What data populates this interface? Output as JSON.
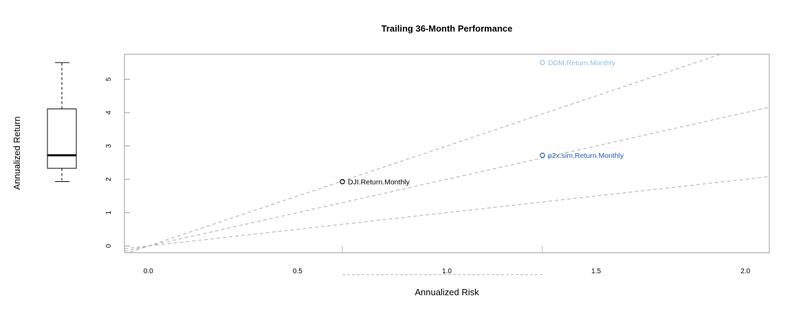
{
  "chart_data": {
    "type": "scatter",
    "title": "Trailing 36-Month Performance",
    "xlabel": "Annualized Risk",
    "ylabel": "Annualized Return",
    "xlim": [
      -0.08,
      2.08
    ],
    "ylim": [
      -0.2,
      5.75
    ],
    "x_ticks": [
      0.0,
      0.5,
      1.0,
      1.5,
      2.0
    ],
    "x_tick_labels": [
      "0.0",
      "0.5",
      "1.0",
      "1.5",
      "2.0"
    ],
    "y_ticks": [
      0,
      1,
      2,
      3,
      4,
      5
    ],
    "y_tick_labels": [
      "0",
      "1",
      "2",
      "3",
      "4",
      "5"
    ],
    "points": [
      {
        "label": "DJI.Return.Monthly",
        "x": 0.65,
        "y": 1.93,
        "color": "#000000"
      },
      {
        "label": "p2x.sim.Return.Monthly",
        "x": 1.32,
        "y": 2.72,
        "color": "#1f5fa6"
      },
      {
        "label": "DDM.Return.Monthly",
        "x": 1.32,
        "y": 5.5,
        "color": "#8fc0e0"
      }
    ],
    "sharpe_line_slopes": [
      1,
      2,
      3
    ],
    "return_boxplot": {
      "min": 1.93,
      "q1": 2.33,
      "median": 2.72,
      "q3": 4.11,
      "max": 5.5
    },
    "risk_boxplot": {
      "min": 0.65,
      "q1": 0.65,
      "median": 1.32,
      "q3": 1.32,
      "max": 1.32
    },
    "grid": false,
    "legend": "none"
  }
}
